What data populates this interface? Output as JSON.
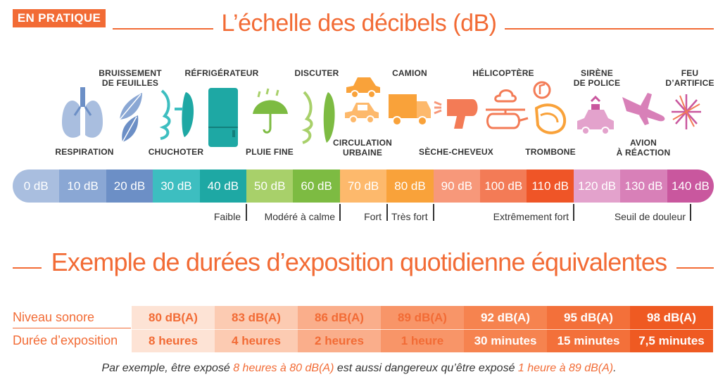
{
  "badge": "EN PRATIQUE",
  "title": "L’échelle des décibels (dB)",
  "sources": [
    {
      "label": "RESPIRATION"
    },
    {
      "label": "BRUISSEMENT\nDE FEUILLES"
    },
    {
      "label": "CHUCHOTER"
    },
    {
      "label": "RÉFRIGÉRATEUR"
    },
    {
      "label": "PLUIE FINE"
    },
    {
      "label": "DISCUTER"
    },
    {
      "label": "CIRCULATION\nURBAINE"
    },
    {
      "label": "CAMION"
    },
    {
      "label": "SÈCHE-CHEVEUX"
    },
    {
      "label": "HÉLICOPTÈRE"
    },
    {
      "label": "TROMBONE"
    },
    {
      "label": "SIRÈNE\nDE POLICE"
    },
    {
      "label": "AVION\nÀ RÉACTION"
    },
    {
      "label": "FEU\nD’ARTIFICE"
    }
  ],
  "scale": [
    {
      "label": "0 dB",
      "color": "#a9bedf"
    },
    {
      "label": "10 dB",
      "color": "#8aa7d4"
    },
    {
      "label": "20 dB",
      "color": "#6c8fc6"
    },
    {
      "label": "30 dB",
      "color": "#3dbec0"
    },
    {
      "label": "40 dB",
      "color": "#1ea8a4"
    },
    {
      "label": "50 dB",
      "color": "#a8d06a"
    },
    {
      "label": "60 dB",
      "color": "#7dbb42"
    },
    {
      "label": "70 dB",
      "color": "#fdb96c"
    },
    {
      "label": "80 dB",
      "color": "#f9a23a"
    },
    {
      "label": "90 dB",
      "color": "#f7987a"
    },
    {
      "label": "100 dB",
      "color": "#f37b56"
    },
    {
      "label": "110 dB",
      "color": "#ef5527"
    },
    {
      "label": "120 dB",
      "color": "#e3a2cc"
    },
    {
      "label": "130 dB",
      "color": "#d880b8"
    },
    {
      "label": "140 dB",
      "color": "#c9579e"
    }
  ],
  "categories": [
    "Faible",
    "Modéré à calme",
    "Fort",
    "Très fort",
    "Extrêmement fort",
    "Seuil de douleur"
  ],
  "subtitle": "Exemple de durées d’exposition quotidienne équivalentes",
  "table": {
    "row1_label": "Niveau sonore",
    "row2_label": "Durée d’exposition",
    "columns": [
      {
        "level": "80 dB(A)",
        "duration": "8 heures",
        "color": "#fde3d5",
        "text": "#f26b35"
      },
      {
        "level": "83 dB(A)",
        "duration": "4 heures",
        "color": "#fccbb2",
        "text": "#f26b35"
      },
      {
        "level": "86 dB(A)",
        "duration": "2 heures",
        "color": "#faae8b",
        "text": "#f26b35"
      },
      {
        "level": "89 dB(A)",
        "duration": "1 heure",
        "color": "#f89568",
        "text": "#f26b35"
      },
      {
        "level": "92 dB(A)",
        "duration": "30 minutes",
        "color": "#f6834f",
        "text": "#ffffff"
      },
      {
        "level": "95 dB(A)",
        "duration": "15 minutes",
        "color": "#f3703a",
        "text": "#ffffff"
      },
      {
        "level": "98 dB(A)",
        "duration": "7,5 minutes",
        "color": "#ef5a22",
        "text": "#ffffff"
      }
    ]
  },
  "note": {
    "part1": "Par exemple, être exposé ",
    "hl1": "8 heures à 80 dB(A)",
    "part2": " est aussi dangereux qu’être exposé ",
    "hl2": "1 heure à 89 dB(A)",
    "part3": "."
  }
}
